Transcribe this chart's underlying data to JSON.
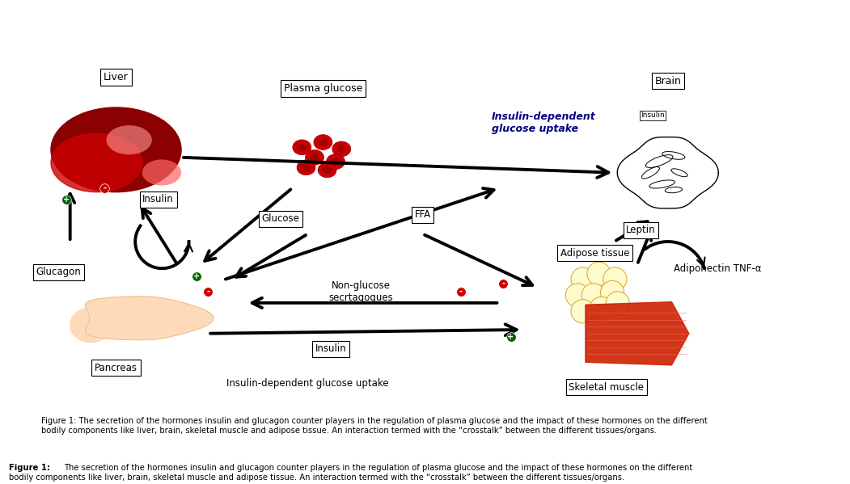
{
  "title": "",
  "figsize": [
    10.51,
    5.99
  ],
  "dpi": 100,
  "background": "#ffffff",
  "caption": "Figure 1: The secretion of the hormones insulin and glucagon counter players in the regulation of plasma glucose and the impact of these hormones on the different\nbodily components like liver, brain, skeletal muscle and adipose tissue. An interaction termed with the “crosstalk” between the different tissues/organs.",
  "labels": {
    "liver": "Liver",
    "plasma_glucose": "Plasma glucose",
    "brain": "Brain",
    "insulin_dependent": "Insulin-dependent\nglucose uptake",
    "pancreas": "Pancreas",
    "glucagon": "Glucagon",
    "insulin1": "Insulin",
    "insulin2": "Insulin",
    "glucose": "Glucose",
    "ffa": "FFA",
    "non_glucose": "Non-glucose\nsecrtagogues",
    "leptin": "Leptin",
    "adiponectin": "Adiponectin TNF-α",
    "adipose_tissue": "Adipose tissue",
    "skeletal_muscle": "Skeletal muscle",
    "insulin_dependent_bottom": "Insulin-dependent glucose uptake",
    "insulin_brain": "Insulin"
  },
  "colors": {
    "arrow_black": "#000000",
    "box_fill": "#ffffff",
    "box_edge": "#000000",
    "liver_dark": "#8B0000",
    "liver_mid": "#CC0000",
    "liver_light": "#FF6666",
    "pancreas_fill": "#FFDAB9",
    "brain_color": "#e8e8e8",
    "adipose_yellow": "#FFFACD",
    "muscle_red": "#CC2200",
    "blood_cell_red": "#CC0000",
    "green_dot": "#006400",
    "red_dot": "#CC0000",
    "label_blue": "#000080",
    "text_red": "#CC0000"
  }
}
